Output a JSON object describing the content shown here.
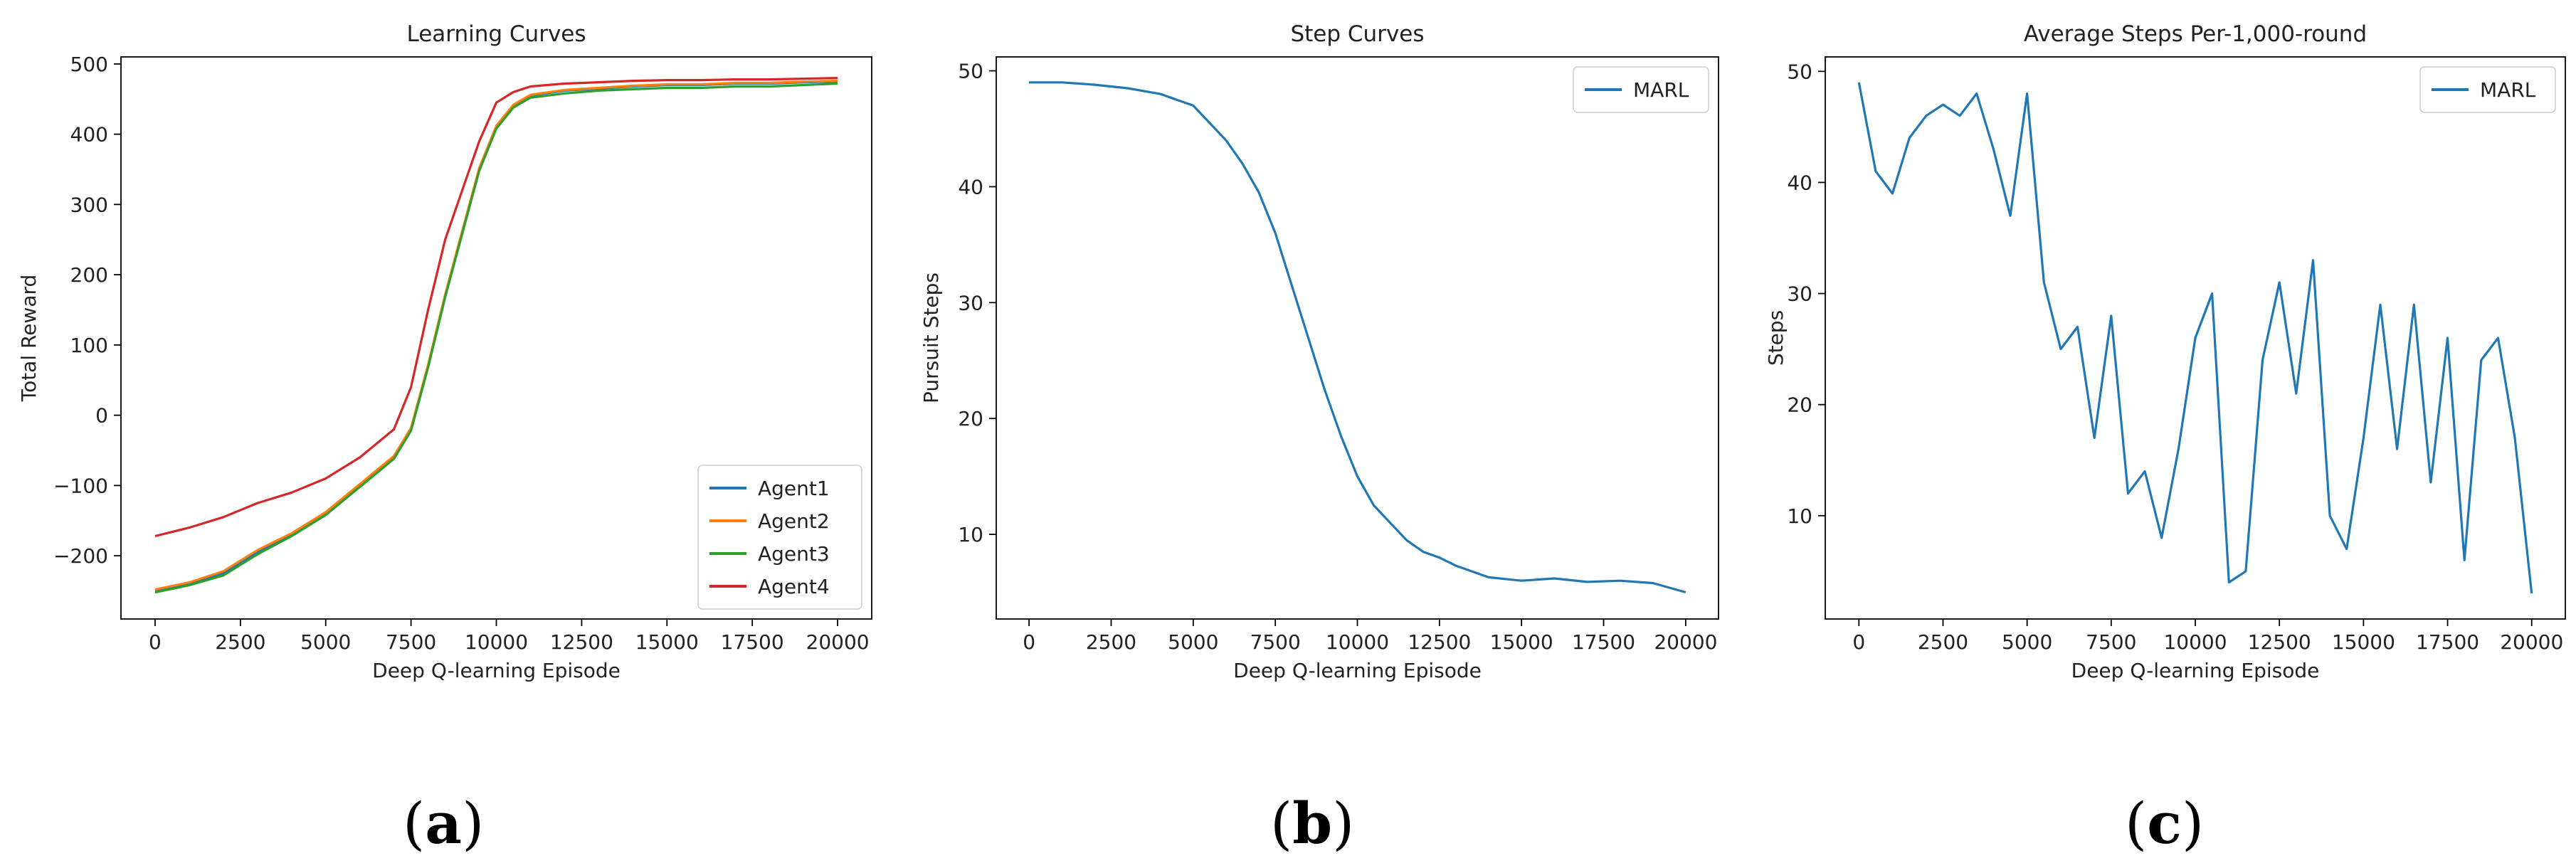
{
  "panel_labels": {
    "a": "a",
    "b": "b",
    "c": "c"
  },
  "chart_data": [
    {
      "type": "line",
      "title": "Learning Curves",
      "xlabel": "Deep Q-learning Episode",
      "ylabel": "Total Reward",
      "xlim": [
        -1000,
        21000
      ],
      "ylim": [
        -290,
        510
      ],
      "xticks": [
        0,
        2500,
        5000,
        7500,
        10000,
        12500,
        15000,
        17500,
        20000
      ],
      "yticks": [
        -200,
        -100,
        0,
        100,
        200,
        300,
        400,
        500
      ],
      "ytick_labels": [
        "−200",
        "−100",
        "0",
        "100",
        "200",
        "300",
        "400",
        "500"
      ],
      "legend": "lower-right",
      "series": [
        {
          "name": "Agent1",
          "color": "#1f77b4",
          "x": [
            0,
            1000,
            2000,
            3000,
            4000,
            5000,
            6000,
            7000,
            7500,
            8000,
            8500,
            9000,
            9500,
            10000,
            10500,
            11000,
            12000,
            13000,
            14000,
            15000,
            16000,
            17000,
            18000,
            19000,
            20000
          ],
          "y": [
            -250,
            -240,
            -225,
            -195,
            -170,
            -140,
            -100,
            -60,
            -20,
            70,
            170,
            260,
            350,
            410,
            440,
            455,
            462,
            465,
            468,
            470,
            470,
            472,
            472,
            474,
            475
          ]
        },
        {
          "name": "Agent2",
          "color": "#ff7f0e",
          "x": [
            0,
            1000,
            2000,
            3000,
            4000,
            5000,
            6000,
            7000,
            7500,
            8000,
            8500,
            9000,
            9500,
            10000,
            10500,
            11000,
            12000,
            13000,
            14000,
            15000,
            16000,
            17000,
            18000,
            19000,
            20000
          ],
          "y": [
            -248,
            -238,
            -222,
            -192,
            -168,
            -138,
            -98,
            -58,
            -18,
            72,
            172,
            262,
            352,
            412,
            442,
            456,
            463,
            466,
            469,
            471,
            471,
            473,
            473,
            475,
            476
          ]
        },
        {
          "name": "Agent3",
          "color": "#2ca02c",
          "x": [
            0,
            1000,
            2000,
            3000,
            4000,
            5000,
            6000,
            7000,
            7500,
            8000,
            8500,
            9000,
            9500,
            10000,
            10500,
            11000,
            12000,
            13000,
            14000,
            15000,
            16000,
            17000,
            18000,
            19000,
            20000
          ],
          "y": [
            -252,
            -242,
            -228,
            -198,
            -172,
            -142,
            -102,
            -62,
            -22,
            68,
            168,
            258,
            348,
            408,
            438,
            452,
            458,
            462,
            464,
            466,
            466,
            468,
            468,
            470,
            472
          ]
        },
        {
          "name": "Agent4",
          "color": "#d62728",
          "x": [
            0,
            1000,
            2000,
            3000,
            4000,
            5000,
            6000,
            7000,
            7500,
            8000,
            8500,
            9000,
            9500,
            10000,
            10500,
            11000,
            12000,
            13000,
            14000,
            15000,
            16000,
            17000,
            18000,
            19000,
            20000
          ],
          "y": [
            -172,
            -160,
            -145,
            -125,
            -110,
            -90,
            -60,
            -20,
            40,
            150,
            250,
            320,
            390,
            445,
            460,
            468,
            472,
            474,
            476,
            477,
            477,
            478,
            478,
            479,
            480
          ]
        }
      ]
    },
    {
      "type": "line",
      "title": "Step Curves",
      "xlabel": "Deep Q-learning Episode",
      "ylabel": "Pursuit Steps",
      "xlim": [
        -1000,
        21000
      ],
      "ylim": [
        2.7,
        51.2
      ],
      "xticks": [
        0,
        2500,
        5000,
        7500,
        10000,
        12500,
        15000,
        17500,
        20000
      ],
      "yticks": [
        10,
        20,
        30,
        40,
        50
      ],
      "ytick_labels": [
        "10",
        "20",
        "30",
        "40",
        "50"
      ],
      "legend": "top-right",
      "series": [
        {
          "name": "MARL",
          "color": "#1f77b4",
          "x": [
            0,
            1000,
            2000,
            3000,
            4000,
            5000,
            5500,
            6000,
            6500,
            7000,
            7500,
            8000,
            8500,
            9000,
            9500,
            10000,
            10500,
            11000,
            11500,
            12000,
            12500,
            13000,
            13500,
            14000,
            15000,
            16000,
            17000,
            18000,
            19000,
            20000
          ],
          "y": [
            49,
            49,
            48.8,
            48.5,
            48,
            47,
            45.5,
            44,
            42,
            39.5,
            36,
            31.5,
            27,
            22.5,
            18.5,
            15,
            12.5,
            11,
            9.5,
            8.5,
            8,
            7.3,
            6.8,
            6.3,
            6,
            6.2,
            5.9,
            6,
            5.8,
            5
          ]
        }
      ]
    },
    {
      "type": "line",
      "title": "Average Steps Per-1,000-round",
      "xlabel": "Deep Q-learning Episode",
      "ylabel": "Steps",
      "xlim": [
        -1000,
        21000
      ],
      "ylim": [
        0.7,
        51.3
      ],
      "xticks": [
        0,
        2500,
        5000,
        7500,
        10000,
        12500,
        15000,
        17500,
        20000
      ],
      "yticks": [
        10,
        20,
        30,
        40,
        50
      ],
      "ytick_labels": [
        "10",
        "20",
        "30",
        "40",
        "50"
      ],
      "legend": "top-right",
      "series": [
        {
          "name": "MARL",
          "color": "#1f77b4",
          "x": [
            0,
            500,
            1000,
            1500,
            2000,
            2500,
            3000,
            3500,
            4000,
            4500,
            5000,
            5500,
            6000,
            6500,
            7000,
            7500,
            8000,
            8500,
            9000,
            9500,
            10000,
            10500,
            11000,
            11500,
            12000,
            12500,
            13000,
            13500,
            14000,
            14500,
            15000,
            15500,
            16000,
            16500,
            17000,
            17500,
            18000,
            18500,
            19000,
            19500,
            20000
          ],
          "y": [
            49,
            41,
            39,
            44,
            46,
            47,
            46,
            48,
            43,
            37,
            48,
            31,
            25,
            27,
            17,
            28,
            12,
            14,
            8,
            16,
            26,
            30,
            4,
            5,
            24,
            31,
            21,
            33,
            10,
            7,
            17,
            29,
            16,
            29,
            13,
            26,
            6,
            24,
            26,
            17,
            3
          ]
        }
      ]
    }
  ]
}
